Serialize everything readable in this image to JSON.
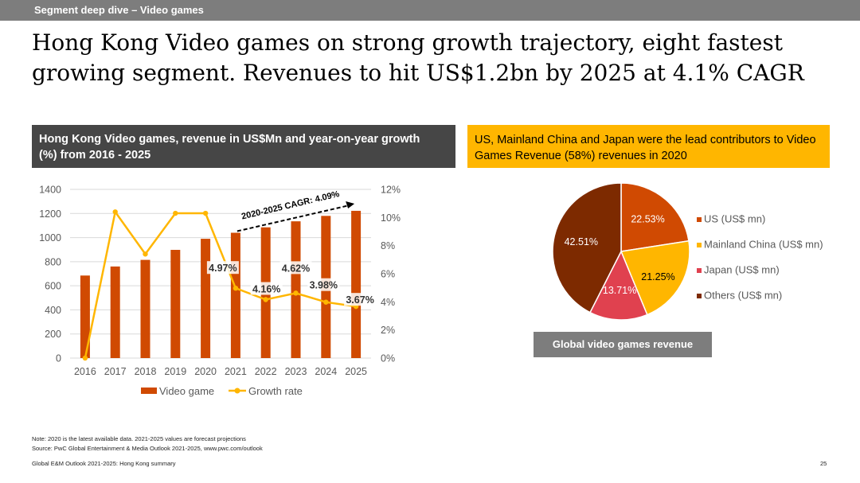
{
  "topbar": {
    "label": "Segment deep dive –  Video games"
  },
  "headline": "Hong Kong Video games on strong growth trajectory, eight fastest growing segment. Revenues to hit US$1.2bn by 2025 at 4.1% CAGR",
  "left_panel": {
    "title": "Hong Kong Video games, revenue in US$Mn and year-on-year growth (%) from 2016 - 2025"
  },
  "right_panel": {
    "title": "US, Mainland China and Japan were the lead contributors to Video Games Revenue (58%) revenues in 2020"
  },
  "pie_caption": "Global video games revenue",
  "notes": {
    "note": "Note: 2020 is the latest available data. 2021-2025 values are forecast projections",
    "source": "Source: PwC Global Entertainment & Media Outlook 2021-2025, www.pwc.com/outlook"
  },
  "footer": {
    "left": "Global E&M Outlook 2021-2025: Hong Kong summary",
    "page": "25"
  },
  "chart_data": [
    {
      "type": "bar",
      "title": "Hong Kong Video games, revenue in US$Mn and year-on-year growth (%) from 2016 - 2025",
      "categories": [
        "2016",
        "2017",
        "2018",
        "2019",
        "2020",
        "2021",
        "2022",
        "2023",
        "2024",
        "2025"
      ],
      "series": [
        {
          "name": "Video game",
          "type": "bar",
          "axis": "left",
          "color": "#d04a02",
          "values": [
            685,
            760,
            815,
            898,
            990,
            1040,
            1085,
            1135,
            1180,
            1222
          ]
        },
        {
          "name": "Growth rate",
          "type": "line",
          "axis": "right",
          "color": "#ffb600",
          "values": [
            0.0,
            10.4,
            7.4,
            10.3,
            10.3,
            4.97,
            4.16,
            4.62,
            3.98,
            3.67
          ]
        }
      ],
      "y_left": {
        "range": [
          0,
          1400
        ],
        "ticks": [
          "0",
          "200",
          "400",
          "600",
          "800",
          "1000",
          "1200",
          "1400"
        ]
      },
      "y_right": {
        "range": [
          0,
          12
        ],
        "ticks": [
          "0%",
          "2%",
          "4%",
          "6%",
          "8%",
          "10%",
          "12%"
        ]
      },
      "grid": true,
      "legend": "bottom",
      "data_labels": [
        {
          "index": 5,
          "text": "4.97%"
        },
        {
          "index": 6,
          "text": "4.16%"
        },
        {
          "index": 7,
          "text": "4.62%"
        },
        {
          "index": 8,
          "text": "3.98%"
        },
        {
          "index": 9,
          "text": "3.67%"
        }
      ],
      "annotation": {
        "text": "2020-2025 CAGR: 4.09%",
        "from_index": 5,
        "to_index": 9
      }
    },
    {
      "type": "pie",
      "title": "Global video games revenue",
      "slices": [
        {
          "name": "US (US$ mn)",
          "value": 22.53,
          "label": "22.53%",
          "color": "#d04a02",
          "label_color": "#ffffff"
        },
        {
          "name": "Mainland China (US$ mn)",
          "value": 21.25,
          "label": "21.25%",
          "color": "#ffb600",
          "label_color": "#000000"
        },
        {
          "name": "Japan (US$ mn)",
          "value": 13.71,
          "label": "13.71%",
          "color": "#e0414f",
          "label_color": "#ffffff"
        },
        {
          "name": "Others (US$ mn)",
          "value": 42.51,
          "label": "42.51%",
          "color": "#7d2a00",
          "label_color": "#ffffff"
        }
      ],
      "legend": "right"
    }
  ]
}
